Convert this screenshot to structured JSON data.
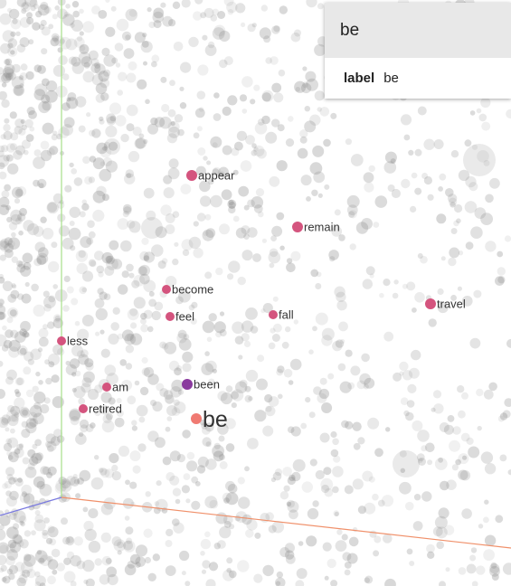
{
  "info_card": {
    "title": "be",
    "field_key": "label",
    "field_value": "be"
  },
  "colors": {
    "axis_x": "#f0906a",
    "axis_y": "#a6e08a",
    "axis_z": "#7a7ae0",
    "background_point": "#8a8a8a",
    "selected_point": "#f07a72",
    "neighbor_point": "#d4547e",
    "nearest_point": "#8a3a9e"
  },
  "points": [
    {
      "label": "be",
      "role": "selected",
      "icon": "point-marker"
    },
    {
      "label": "appear",
      "role": "neighbor"
    },
    {
      "label": "remain",
      "role": "neighbor"
    },
    {
      "label": "become",
      "role": "neighbor"
    },
    {
      "label": "feel",
      "role": "neighbor"
    },
    {
      "label": "fall",
      "role": "neighbor"
    },
    {
      "label": "travel",
      "role": "neighbor"
    },
    {
      "label": "less",
      "role": "neighbor"
    },
    {
      "label": "am",
      "role": "neighbor"
    },
    {
      "label": "been",
      "role": "nearest"
    },
    {
      "label": "retired",
      "role": "neighbor"
    }
  ]
}
